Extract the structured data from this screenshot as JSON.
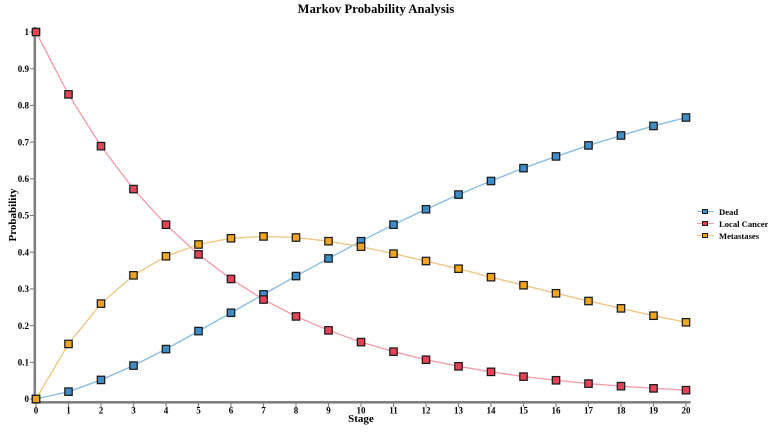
{
  "chart_data": {
    "type": "line",
    "title": "Markov Probability Analysis",
    "xlabel": "Stage",
    "ylabel": "Probability",
    "xlim": [
      0,
      20
    ],
    "ylim": [
      0,
      1
    ],
    "grid": false,
    "legend_position": "right-outside",
    "x": [
      0,
      1,
      2,
      3,
      4,
      5,
      6,
      7,
      8,
      9,
      10,
      11,
      12,
      13,
      14,
      15,
      16,
      17,
      18,
      19,
      20
    ],
    "x_tick_labels": [
      "0",
      "1",
      "2",
      "3",
      "4",
      "5",
      "6",
      "7",
      "8",
      "9",
      "10",
      "11",
      "12",
      "13",
      "14",
      "15",
      "16",
      "17",
      "18",
      "19",
      "20"
    ],
    "y_ticks": [
      0,
      0.1,
      0.2,
      0.3,
      0.4,
      0.5,
      0.6,
      0.7,
      0.8,
      0.9,
      1
    ],
    "y_tick_labels": [
      "0",
      "0.1",
      "0.2",
      "0.3",
      "0.4",
      "0.5",
      "0.6",
      "0.7",
      "0.8",
      "0.9",
      "1"
    ],
    "axis_color": "#808080",
    "text_color": "#000000",
    "background_color": "#ffffff",
    "marker_shape": "square",
    "marker_edge_color": "#1a1a1a",
    "series": [
      {
        "name": "Dead",
        "marker_color": "#3e8dc9",
        "line_color": "#8abde2",
        "values": [
          0,
          0.02,
          0.052,
          0.091,
          0.136,
          0.185,
          0.235,
          0.285,
          0.335,
          0.383,
          0.43,
          0.475,
          0.517,
          0.557,
          0.594,
          0.629,
          0.661,
          0.691,
          0.718,
          0.744,
          0.767
        ]
      },
      {
        "name": "Local Cancer",
        "marker_color": "#e64358",
        "line_color": "#f2a0ab",
        "values": [
          1,
          0.83,
          0.689,
          0.572,
          0.475,
          0.394,
          0.327,
          0.271,
          0.225,
          0.187,
          0.155,
          0.129,
          0.107,
          0.089,
          0.074,
          0.061,
          0.051,
          0.042,
          0.035,
          0.029,
          0.024
        ]
      },
      {
        "name": "Metastases",
        "marker_color": "#efa422",
        "line_color": "#edc887",
        "values": [
          0,
          0.15,
          0.26,
          0.337,
          0.389,
          0.421,
          0.438,
          0.443,
          0.44,
          0.43,
          0.415,
          0.396,
          0.376,
          0.355,
          0.332,
          0.31,
          0.288,
          0.267,
          0.247,
          0.227,
          0.209
        ]
      }
    ]
  }
}
